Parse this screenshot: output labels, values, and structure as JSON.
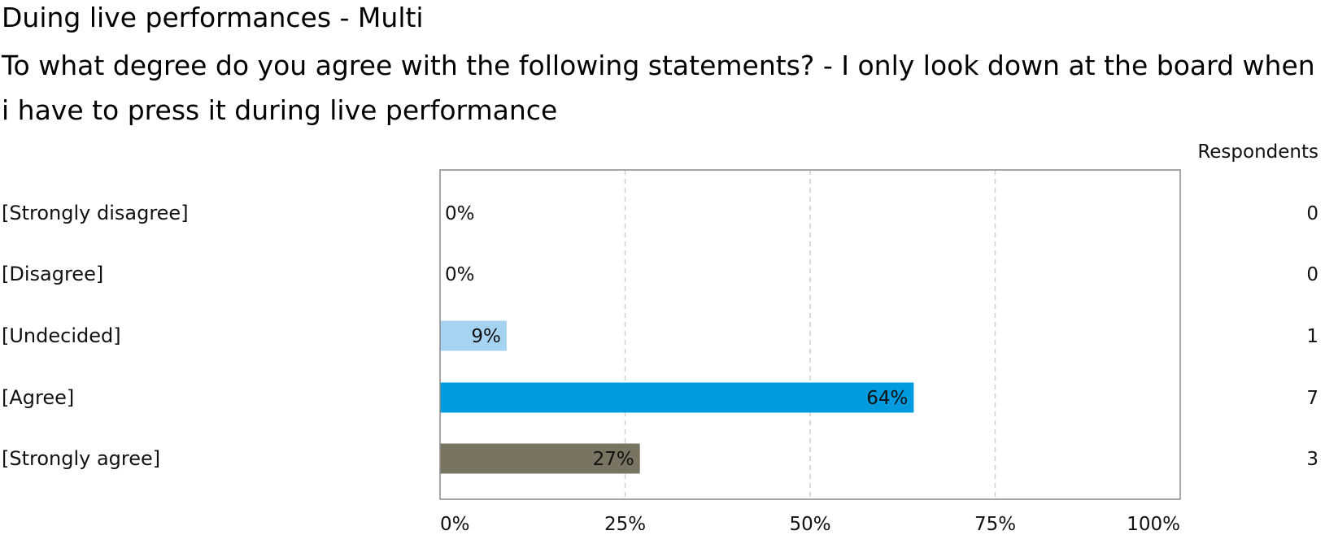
{
  "header": {
    "title": "Duing live performances - Multi",
    "question": "To what degree do you agree with the following statements? - I only look down at the board when i have to press it during live performance"
  },
  "respondents_label": "Respondents",
  "chart_data": {
    "type": "bar",
    "orientation": "horizontal",
    "categories": [
      "[Strongly disagree]",
      "[Disagree]",
      "[Undecided]",
      "[Agree]",
      "[Strongly agree]"
    ],
    "values": [
      0,
      0,
      9,
      64,
      27
    ],
    "value_labels": [
      "0%",
      "0%",
      "9%",
      "64%",
      "27%"
    ],
    "respondents": [
      "0",
      "0",
      "1",
      "7",
      "3"
    ],
    "colors": [
      "#a7d3f2",
      "#a7d3f2",
      "#a7d3f2",
      "#009ade",
      "#787461"
    ],
    "xlim": [
      0,
      100
    ],
    "x_ticks": [
      "0%",
      "25%",
      "50%",
      "75%",
      "100%"
    ],
    "grid": "vertical dashed"
  }
}
